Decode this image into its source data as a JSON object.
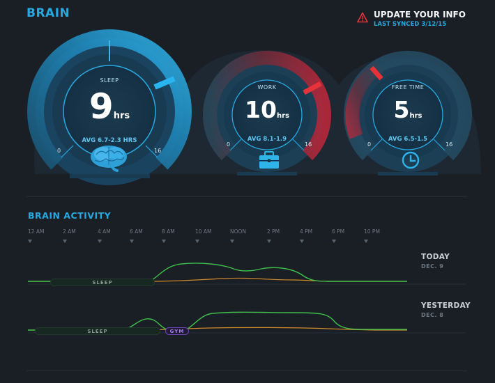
{
  "header": {
    "title": "BRAIN",
    "update_title": "UPDATE YOUR INFO",
    "last_synced": "LAST SYNCED 3/12/15"
  },
  "gauges": [
    {
      "label": "SLEEP",
      "value": "9",
      "unit": "hrs",
      "avg": "AVG 6.7",
      "delta": "-2.3 HRS",
      "min": "0",
      "max": "16",
      "icon": "brain-icon",
      "accent": "#29a8e0"
    },
    {
      "label": "WORK",
      "value": "10",
      "unit": "hrs",
      "avg": "AVG 8.1",
      "delta": "-1.9",
      "min": "0",
      "max": "16",
      "icon": "briefcase-icon",
      "accent": "#e8323a"
    },
    {
      "label": "FREE TIME",
      "value": "5",
      "unit": "hrs",
      "avg": "AVG 6.5",
      "delta": "-1.5",
      "min": "0",
      "max": "16",
      "icon": "clock-icon",
      "accent": "#e8323a"
    }
  ],
  "activity": {
    "title": "BRAIN ACTIVITY",
    "time_labels": [
      "12 AM",
      "2 AM",
      "4 AM",
      "6 AM",
      "8 AM",
      "10 AM",
      "NOON",
      "2 PM",
      "4 PM",
      "6 PM",
      "10 PM"
    ],
    "days": [
      {
        "label": "TODAY",
        "date": "DEC. 9",
        "pills": [
          "SLEEP"
        ]
      },
      {
        "label": "YESTERDAY",
        "date": "DEC. 8",
        "pills": [
          "SLEEP",
          "GYM"
        ]
      }
    ]
  },
  "colors": {
    "accent_blue": "#29a8e0",
    "alert_red": "#e8323a",
    "trace_green": "#3fbf4a",
    "trace_orange": "#d08a2a",
    "gym_purple": "#7a52c7"
  }
}
